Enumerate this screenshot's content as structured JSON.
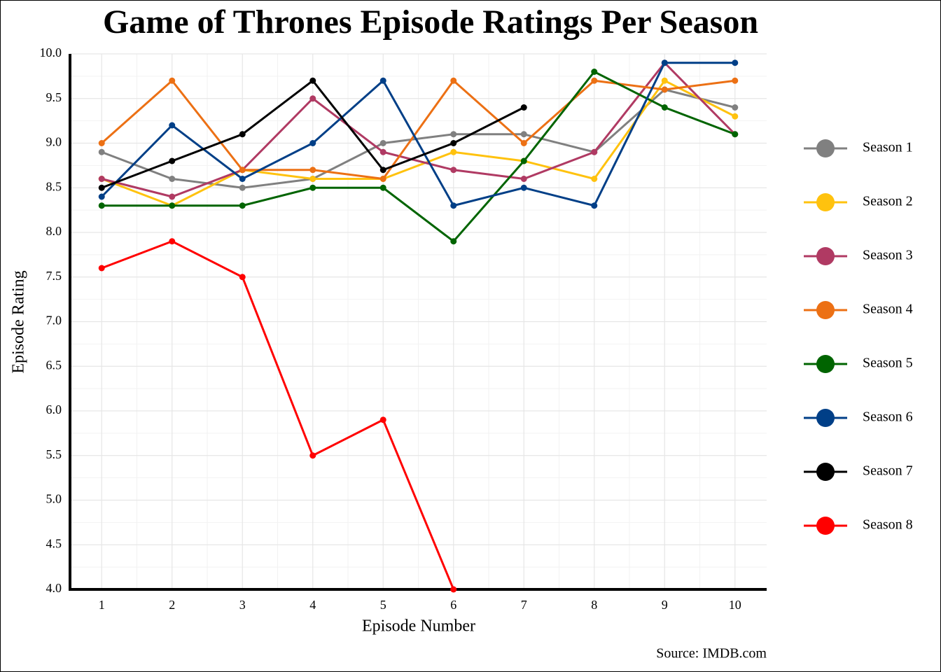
{
  "chart_data": {
    "type": "line",
    "title": "Game of Thrones Episode Ratings Per Season",
    "x_label": "Episode Number",
    "y_label": "Episode Rating",
    "caption": "Source: IMDB.com",
    "x": [
      1,
      2,
      3,
      4,
      5,
      6,
      7,
      8,
      9,
      10
    ],
    "xlim": [
      0.55,
      10.45
    ],
    "xticks": [
      1,
      2,
      3,
      4,
      5,
      6,
      7,
      8,
      9,
      10
    ],
    "ylim": [
      4,
      10
    ],
    "yticks": [
      {
        "value": 4,
        "label": "4.0"
      },
      {
        "value": 4.5,
        "label": "4.5"
      },
      {
        "value": 5,
        "label": "5.0"
      },
      {
        "value": 5.5,
        "label": "5.5"
      },
      {
        "value": 6,
        "label": "6.0"
      },
      {
        "value": 6.5,
        "label": "6.5"
      },
      {
        "value": 7,
        "label": "7.0"
      },
      {
        "value": 7.5,
        "label": "7.5"
      },
      {
        "value": 8,
        "label": "8.0"
      },
      {
        "value": 8.5,
        "label": "8.5"
      },
      {
        "value": 9,
        "label": "9.0"
      },
      {
        "value": 9.5,
        "label": "9.5"
      },
      {
        "value": 10,
        "label": "10.0"
      }
    ],
    "grid": true,
    "legend": "right",
    "series": [
      {
        "name": "Season 1",
        "color": "#808080",
        "values": [
          8.9,
          8.6,
          8.5,
          8.6,
          9.0,
          9.1,
          9.1,
          8.9,
          9.6,
          9.4
        ]
      },
      {
        "name": "Season 2",
        "color": "#ffc20e",
        "values": [
          8.6,
          8.3,
          8.7,
          8.6,
          8.6,
          8.9,
          8.8,
          8.6,
          9.7,
          9.3
        ]
      },
      {
        "name": "Season 3",
        "color": "#b03a63",
        "values": [
          8.6,
          8.4,
          8.7,
          9.5,
          8.9,
          8.7,
          8.6,
          8.9,
          9.9,
          9.1
        ]
      },
      {
        "name": "Season 4",
        "color": "#ec7014",
        "values": [
          9.0,
          9.7,
          8.7,
          8.7,
          8.6,
          9.7,
          9.0,
          9.7,
          9.6,
          9.7
        ]
      },
      {
        "name": "Season 5",
        "color": "#006400",
        "values": [
          8.3,
          8.3,
          8.3,
          8.5,
          8.5,
          7.9,
          8.8,
          9.8,
          9.4,
          9.1
        ]
      },
      {
        "name": "Season 6",
        "color": "#003f87",
        "values": [
          8.4,
          9.2,
          8.6,
          9.0,
          9.7,
          8.3,
          8.5,
          8.3,
          9.9,
          9.9
        ]
      },
      {
        "name": "Season 7",
        "color": "#000000",
        "values": [
          8.5,
          8.8,
          9.1,
          9.7,
          8.7,
          9.0,
          9.4,
          null,
          null,
          null
        ]
      },
      {
        "name": "Season 8",
        "color": "#ff0000",
        "values": [
          7.6,
          7.9,
          7.5,
          5.5,
          5.9,
          4.0,
          null,
          null,
          null,
          null
        ]
      }
    ]
  }
}
